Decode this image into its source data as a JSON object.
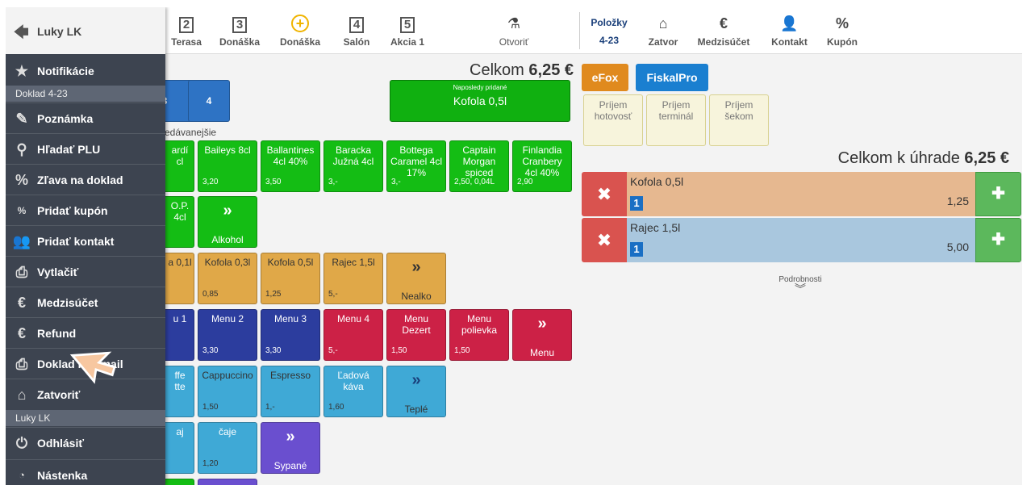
{
  "topbar": {
    "tabs": [
      {
        "num": "2",
        "label": "Terasa"
      },
      {
        "num": "3",
        "label": "Donáška"
      },
      {
        "num": "+",
        "label": "Donáška"
      },
      {
        "num": "4",
        "label": "Salón"
      },
      {
        "num": "5",
        "label": "Akcia 1"
      }
    ],
    "open_label": "Otvoriť",
    "items_label": "Položky",
    "items_value": "4-23",
    "close_label": "Zatvor",
    "subtotal_label": "Medzisúčet",
    "contact_label": "Kontakt",
    "coupon_label": "Kupón"
  },
  "order": {
    "total_label": "Celkom",
    "total_value": "6,25 €",
    "last_added_label": "Naposledy pridané",
    "last_added_item": "Kofola 0,5l",
    "table_num": "4",
    "subheading": "edávanejšie"
  },
  "tiles": {
    "row1": [
      {
        "name": "ardí\ncl",
        "price": ""
      },
      {
        "name": "Baileys 8cl",
        "price": "3,20"
      },
      {
        "name": "Ballantines 4cl 40%",
        "price": "3,50"
      },
      {
        "name": "Baracka Južná 4cl",
        "price": "3,-"
      },
      {
        "name": "Bottega Caramel 4cl 17%",
        "price": "3,-"
      },
      {
        "name": "Captain Morgan spiced",
        "price": "2,50, 0,04L"
      },
      {
        "name": "Finlandia Cranbery 4cl 40%",
        "price": "2,90"
      }
    ],
    "row2": [
      {
        "name": "O.P.\n4cl",
        "price": ""
      }
    ],
    "row2_more": "Alkohol",
    "row3": [
      {
        "name": "a 0,1l",
        "price": ""
      },
      {
        "name": "Kofola 0,3l",
        "price": "0,85"
      },
      {
        "name": "Kofola 0,5l",
        "price": "1,25"
      },
      {
        "name": "Rajec 1,5l",
        "price": "5,-"
      }
    ],
    "row3_more": "Nealko",
    "row4": [
      {
        "name": "u 1",
        "price": ""
      },
      {
        "name": "Menu 2",
        "price": "3,30"
      },
      {
        "name": "Menu 3",
        "price": "3,30"
      },
      {
        "name": "Menu 4",
        "price": "5,-"
      },
      {
        "name": "Menu Dezert",
        "price": "1,50"
      },
      {
        "name": "Menu polievka",
        "price": "1,50"
      }
    ],
    "row4_more": "Menu",
    "row5": [
      {
        "name": "ffe\ntte",
        "price": ""
      },
      {
        "name": "Cappuccino",
        "price": "1,50"
      },
      {
        "name": "Espresso",
        "price": "1,-"
      },
      {
        "name": "Ľadová káva",
        "price": "1,60"
      }
    ],
    "row5_more": "Teplé",
    "row6": [
      {
        "name": "aj",
        "price": ""
      },
      {
        "name": "čaje",
        "price": "1,20"
      }
    ],
    "row6_more": "Sypané"
  },
  "payment": {
    "efox": "eFox",
    "fiskalpro": "FiskalPro",
    "options": [
      "Príjem hotovosť",
      "Príjem terminál",
      "Príjem šekom"
    ],
    "due_label": "Celkom k úhrade",
    "due_value": "6,25 €"
  },
  "items": [
    {
      "name": "Kofola 0,5l",
      "qty": "1",
      "price": "1,25",
      "color": "#e6b890"
    },
    {
      "name": "Rajec 1,5l",
      "qty": "1",
      "price": "5,00",
      "color": "#a9c7de"
    }
  ],
  "details_label": "Podrobnosti",
  "sidebar": {
    "user": "Luky LK",
    "notifications": "Notifikácie",
    "section_doc": "Doklad 4-23",
    "items": [
      {
        "icon": "note-icon",
        "label": "Poznámka"
      },
      {
        "icon": "search-icon",
        "label": "Hľadať PLU"
      },
      {
        "icon": "percent-icon",
        "label": "Zľava na doklad"
      },
      {
        "icon": "coupon-icon",
        "label": "Pridať kupón"
      },
      {
        "icon": "contacts-icon",
        "label": "Pridať kontakt"
      },
      {
        "icon": "print-icon",
        "label": "Vytlačiť"
      },
      {
        "icon": "euro-icon",
        "label": "Medzisúčet"
      },
      {
        "icon": "refund-icon",
        "label": "Refund"
      },
      {
        "icon": "email-icon",
        "label": "Doklad na email"
      },
      {
        "icon": "home-icon",
        "label": "Zatvoriť"
      }
    ],
    "section_user": "Luky LK",
    "logout": "Odhlásiť",
    "board": "Nástenka"
  }
}
